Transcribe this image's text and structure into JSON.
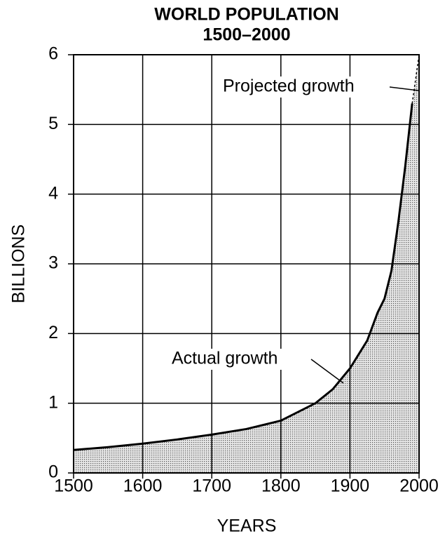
{
  "chart_data": {
    "type": "area",
    "title": "WORLD POPULATION",
    "subtitle": "1500–2000",
    "x_label": "YEARS",
    "y_label": "BILLIONS",
    "xlim": [
      1500,
      2000
    ],
    "xticks": [
      1500,
      1600,
      1700,
      1800,
      1900,
      2000
    ],
    "ylim": [
      0,
      6
    ],
    "yticks": [
      0,
      1,
      2,
      3,
      4,
      5,
      6
    ],
    "grid": true,
    "series": [
      {
        "name": "Actual growth",
        "color": "#000000",
        "style": "solid",
        "x": [
          1500,
          1550,
          1600,
          1650,
          1700,
          1750,
          1800,
          1850,
          1875,
          1900,
          1925,
          1940,
          1950,
          1960,
          1970,
          1980,
          1990
        ],
        "values": [
          0.33,
          0.37,
          0.42,
          0.48,
          0.55,
          0.63,
          0.75,
          1.0,
          1.2,
          1.5,
          1.9,
          2.3,
          2.5,
          2.9,
          3.6,
          4.4,
          5.3
        ]
      },
      {
        "name": "Projected growth",
        "color": "#000000",
        "style": "dashed",
        "x": [
          1990,
          2000
        ],
        "values": [
          5.3,
          6.0
        ]
      }
    ]
  }
}
